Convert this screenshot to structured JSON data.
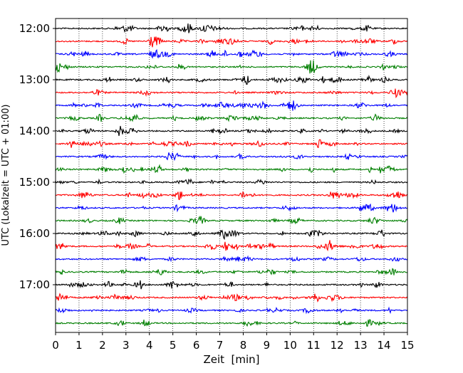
{
  "chart_data": {
    "type": "line",
    "title": "",
    "xlabel": "Zeit  [min]",
    "ylabel": "UTC (Lokalzeit = UTC + 01:00)",
    "xlim": [
      0,
      15
    ],
    "x_ticks": [
      "0",
      "1",
      "2",
      "3",
      "4",
      "5",
      "6",
      "7",
      "8",
      "9",
      "10",
      "11",
      "12",
      "13",
      "14",
      "15"
    ],
    "y_tick_labels": [
      "12:00",
      "13:00",
      "14:00",
      "15:00",
      "16:00",
      "17:00"
    ],
    "grid": "vertical dotted at each minute",
    "legend": "none",
    "trace_interval_minutes": 15,
    "trace_start": "12:00",
    "trace_count": 24,
    "trace_color_cycle": [
      "#000000",
      "#ff0000",
      "#0000ff",
      "#007f00"
    ]
  }
}
